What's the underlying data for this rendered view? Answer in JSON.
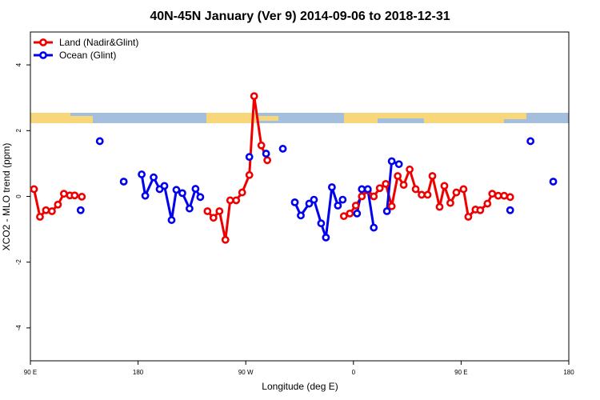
{
  "chart_data": {
    "type": "line",
    "title": "40N-45N January (Ver 9)   2014-09-06 to 2018-12-31",
    "xlabel": "Longitude (deg E)",
    "ylabel": "XCO2 - MLO trend (ppm)",
    "xlim": [
      90,
      540
    ],
    "ylim": [
      -5,
      5
    ],
    "xticks": [
      {
        "value": 90,
        "label": "90 E"
      },
      180,
      {
        "value": 270,
        "label": "90 W"
      },
      {
        "value": 360,
        "label": "0"
      },
      {
        "value": 450,
        "label": "90 E"
      },
      {
        "value": 540,
        "label": "180"
      }
    ],
    "yticks": [
      -4,
      -2,
      0,
      2,
      4
    ],
    "legend": "top-left",
    "series": [
      {
        "name": "Land (Nadir&Glint)",
        "color": "#ee0000",
        "x": [
          93,
          98,
          103,
          108,
          113,
          118,
          123,
          127,
          133,
          null,
          238,
          243,
          248,
          253,
          257,
          262,
          267,
          273,
          277,
          283,
          288,
          null,
          352,
          357,
          362,
          367,
          372,
          377,
          382,
          387,
          392,
          397,
          402,
          407,
          412,
          417,
          422,
          426,
          432,
          436,
          441,
          446,
          452,
          456,
          462,
          466,
          472,
          476,
          481,
          486,
          491
        ],
        "values": [
          0.22,
          -0.62,
          -0.42,
          -0.45,
          -0.25,
          0.08,
          0.03,
          0.03,
          -0.01,
          null,
          -0.45,
          -0.65,
          -0.45,
          -1.32,
          -0.12,
          -0.12,
          0.12,
          0.65,
          3.05,
          1.55,
          1.1,
          null,
          -0.6,
          -0.52,
          -0.28,
          0.0,
          0.18,
          0.0,
          0.25,
          0.38,
          -0.3,
          0.62,
          0.35,
          0.82,
          0.22,
          0.05,
          0.05,
          0.62,
          -0.32,
          0.32,
          -0.2,
          0.12,
          0.22,
          -0.62,
          -0.4,
          -0.42,
          -0.22,
          0.08,
          0.02,
          0.02,
          -0.02
        ]
      },
      {
        "name": "Ocean (Glint)",
        "color": "#0000ee",
        "x": [
          132,
          null,
          148,
          null,
          168,
          null,
          183,
          186,
          193,
          198,
          202,
          208,
          212,
          217,
          223,
          228,
          232,
          null,
          273,
          null,
          287,
          null,
          301,
          null,
          311,
          316,
          323,
          327,
          333,
          337,
          342,
          347,
          351,
          null,
          363,
          367,
          372,
          377,
          null,
          388,
          392,
          398,
          null,
          491,
          null,
          508,
          null,
          527
        ],
        "values": [
          -0.42,
          null,
          1.68,
          null,
          0.45,
          null,
          0.67,
          0.02,
          0.58,
          0.22,
          0.32,
          -0.72,
          0.2,
          0.1,
          -0.37,
          0.23,
          -0.02,
          null,
          1.2,
          null,
          1.3,
          null,
          1.45,
          null,
          -0.18,
          -0.58,
          -0.22,
          -0.1,
          -0.82,
          -1.25,
          0.28,
          -0.28,
          -0.1,
          null,
          -0.52,
          0.22,
          0.22,
          -0.95,
          null,
          -0.45,
          1.07,
          0.98,
          null,
          -0.42,
          null,
          1.68,
          null,
          0.45
        ]
      }
    ]
  }
}
